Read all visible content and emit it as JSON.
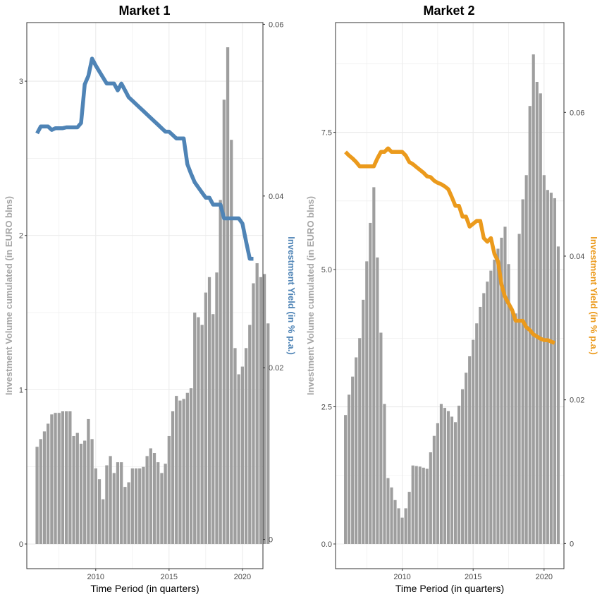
{
  "colors": {
    "bar": "#9e9e9e",
    "volume_label": "#a6a6a6",
    "grid": "#ebebeb",
    "panel_border": "#333333"
  },
  "chart_data": [
    {
      "type": "bar",
      "title": "Market 1",
      "xlabel": "Time Period (in quarters)",
      "ylabel": "Investment Volume cumulated (in EURO blns)",
      "y2label": "Investment Yield (in % p.a.)",
      "line_color": "#4f84b6",
      "xlim": [
        2005.3,
        2021.4
      ],
      "ylim": [
        -0.16,
        3.38
      ],
      "y2lim": [
        -0.0034,
        0.0602
      ],
      "x_ticks": [
        2010,
        2015,
        2020
      ],
      "x_tick_labels": [
        "2010",
        "2015",
        "2020"
      ],
      "y_ticks": [
        0,
        1,
        2,
        3
      ],
      "y_tick_labels": [
        "0",
        "1",
        "2",
        "3"
      ],
      "y2_ticks": [
        0,
        0.02,
        0.04,
        0.06
      ],
      "y2_tick_labels": [
        "0",
        "0.02",
        "0.04",
        "0.06"
      ],
      "bars": {
        "x_start": 2006.0,
        "x_step": 0.25,
        "values": [
          0.63,
          0.68,
          0.73,
          0.78,
          0.84,
          0.85,
          0.85,
          0.86,
          0.86,
          0.86,
          0.7,
          0.72,
          0.65,
          0.67,
          0.81,
          0.68,
          0.49,
          0.42,
          0.29,
          0.51,
          0.57,
          0.46,
          0.53,
          0.53,
          0.37,
          0.4,
          0.49,
          0.49,
          0.49,
          0.5,
          0.57,
          0.62,
          0.59,
          0.53,
          0.46,
          0.52,
          0.7,
          0.86,
          0.96,
          0.93,
          0.94,
          0.98,
          1.01,
          1.5,
          1.47,
          1.42,
          1.63,
          1.73,
          1.49,
          1.76,
          2.23,
          2.88,
          3.22,
          2.62,
          1.27,
          1.1,
          1.15,
          1.27,
          1.42,
          1.69,
          1.82,
          1.73,
          1.75,
          1.43
        ]
      },
      "yield": {
        "x": [
          2006.0,
          2006.25,
          2006.5,
          2006.75,
          2007.0,
          2007.25,
          2007.5,
          2007.75,
          2008.0,
          2008.25,
          2008.5,
          2008.75,
          2009.0,
          2009.25,
          2009.5,
          2009.75,
          2010.0,
          2010.25,
          2010.5,
          2010.75,
          2011.0,
          2011.25,
          2011.5,
          2011.75,
          2012.0,
          2012.25,
          2012.5,
          2012.75,
          2013.0,
          2013.25,
          2013.5,
          2013.75,
          2014.0,
          2014.25,
          2014.5,
          2014.75,
          2015.0,
          2015.25,
          2015.5,
          2015.75,
          2016.0,
          2016.25,
          2016.5,
          2016.75,
          2017.0,
          2017.25,
          2017.5,
          2017.75,
          2018.0,
          2018.25,
          2018.5,
          2018.75,
          2019.0,
          2019.25,
          2019.5,
          2019.75,
          2020.0,
          2020.25,
          2020.5,
          2020.75
        ],
        "values": [
          0.0473,
          0.0481,
          0.0481,
          0.0481,
          0.0477,
          0.0479,
          0.0479,
          0.0479,
          0.048,
          0.048,
          0.048,
          0.048,
          0.0485,
          0.053,
          0.054,
          0.056,
          0.0552,
          0.0545,
          0.0538,
          0.0531,
          0.0531,
          0.0531,
          0.0523,
          0.0531,
          0.0523,
          0.0515,
          0.0511,
          0.0507,
          0.0503,
          0.0499,
          0.0495,
          0.0491,
          0.0487,
          0.0483,
          0.0479,
          0.0475,
          0.0475,
          0.0471,
          0.0467,
          0.0467,
          0.0467,
          0.0437,
          0.0426,
          0.0416,
          0.041,
          0.0404,
          0.0398,
          0.0398,
          0.039,
          0.039,
          0.039,
          0.0374,
          0.0374,
          0.0374,
          0.0374,
          0.0374,
          0.0368,
          0.0347,
          0.0327,
          0.0327
        ]
      }
    },
    {
      "type": "bar",
      "title": "Market 2",
      "xlabel": "Time Period (in quarters)",
      "ylabel": "Investment Volume cumulated (in EURO blns)",
      "y2label": "Investment Yield (in % p.a.)",
      "line_color": "#eb9a1c",
      "xlim": [
        2005.3,
        2021.4
      ],
      "ylim": [
        -0.45,
        9.5
      ],
      "y2lim": [
        -0.0035,
        0.0725
      ],
      "x_ticks": [
        2010,
        2015,
        2020
      ],
      "x_tick_labels": [
        "2010",
        "2015",
        "2020"
      ],
      "y_ticks": [
        0,
        2.5,
        5,
        7.5
      ],
      "y_tick_labels": [
        "0.0",
        "2.5",
        "5.0",
        "7.5"
      ],
      "y2_ticks": [
        0,
        0.02,
        0.04,
        0.06
      ],
      "y2_tick_labels": [
        "0",
        "0.02",
        "0.04",
        "0.06"
      ],
      "bars": {
        "x_start": 2006.0,
        "x_step": 0.25,
        "values": [
          2.35,
          2.72,
          3.05,
          3.4,
          3.75,
          4.45,
          5.15,
          5.85,
          6.5,
          5.22,
          3.85,
          2.55,
          1.2,
          1.03,
          0.8,
          0.65,
          0.48,
          0.65,
          0.95,
          1.43,
          1.42,
          1.41,
          1.39,
          1.37,
          1.67,
          1.97,
          2.2,
          2.55,
          2.48,
          2.42,
          2.32,
          2.22,
          2.52,
          2.82,
          3.12,
          3.42,
          3.72,
          4.02,
          4.32,
          4.57,
          4.78,
          4.98,
          5.18,
          5.38,
          5.58,
          5.78,
          5.1,
          4.25,
          4.2,
          5.65,
          6.28,
          6.72,
          7.98,
          8.92,
          8.42,
          8.21,
          6.72,
          6.45,
          6.4,
          6.3,
          5.42
        ]
      },
      "yield": {
        "x": [
          2006.0,
          2006.25,
          2006.5,
          2006.75,
          2007.0,
          2007.25,
          2007.5,
          2007.75,
          2008.0,
          2008.25,
          2008.5,
          2008.75,
          2009.0,
          2009.25,
          2009.5,
          2009.75,
          2010.0,
          2010.25,
          2010.5,
          2010.75,
          2011.0,
          2011.25,
          2011.5,
          2011.75,
          2012.0,
          2012.25,
          2012.5,
          2012.75,
          2013.0,
          2013.25,
          2013.5,
          2013.75,
          2014.0,
          2014.25,
          2014.5,
          2014.75,
          2015.0,
          2015.25,
          2015.5,
          2015.75,
          2016.0,
          2016.25,
          2016.5,
          2016.75,
          2017.0,
          2017.25,
          2017.5,
          2017.75,
          2018.0,
          2018.25,
          2018.5,
          2018.75,
          2019.0,
          2019.25,
          2019.5,
          2019.75,
          2020.0,
          2020.25,
          2020.5,
          2020.75
        ],
        "values": [
          0.0545,
          0.054,
          0.0536,
          0.0531,
          0.0525,
          0.0525,
          0.0525,
          0.0525,
          0.0525,
          0.0536,
          0.0545,
          0.0545,
          0.055,
          0.0545,
          0.0545,
          0.0545,
          0.0545,
          0.054,
          0.0531,
          0.0528,
          0.0524,
          0.052,
          0.0516,
          0.0511,
          0.051,
          0.0505,
          0.0502,
          0.05,
          0.0497,
          0.0493,
          0.0482,
          0.047,
          0.047,
          0.0455,
          0.0455,
          0.0441,
          0.0445,
          0.0449,
          0.0449,
          0.0425,
          0.042,
          0.0425,
          0.0403,
          0.0393,
          0.036,
          0.0343,
          0.0334,
          0.0325,
          0.031,
          0.031,
          0.031,
          0.0301,
          0.0297,
          0.0291,
          0.0288,
          0.0285,
          0.0283,
          0.0283,
          0.0281,
          0.0279
        ]
      }
    }
  ]
}
